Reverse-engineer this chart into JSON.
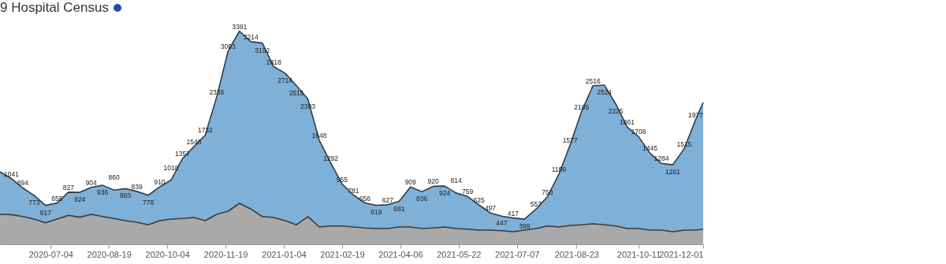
{
  "chart_data": {
    "type": "area",
    "title": "9 Hospital Census",
    "tick_labels": "x",
    "xlim": [
      "2020-05-25",
      "2021-12-01"
    ],
    "ylim": [
      0,
      3500
    ],
    "xticks": [
      "2020-07-04",
      "2020-08-19",
      "2020-10-04",
      "2020-11-19",
      "2021-01-04",
      "2021-02-19",
      "2021-04-06",
      "2021-05-22",
      "2021-07-07",
      "2021-08-23",
      "2021-10-11",
      "2021-12-01"
    ],
    "x": [
      "2020-05-25",
      "2020-06-03",
      "2020-06-12",
      "2020-06-21",
      "2020-06-30",
      "2020-07-09",
      "2020-07-18",
      "2020-07-27",
      "2020-08-05",
      "2020-08-14",
      "2020-08-23",
      "2020-09-01",
      "2020-09-10",
      "2020-09-19",
      "2020-09-28",
      "2020-10-07",
      "2020-10-16",
      "2020-10-25",
      "2020-11-03",
      "2020-11-12",
      "2020-11-21",
      "2020-11-30",
      "2020-12-09",
      "2020-12-18",
      "2020-12-27",
      "2021-01-05",
      "2021-01-14",
      "2021-01-23",
      "2021-02-01",
      "2021-02-10",
      "2021-02-19",
      "2021-02-28",
      "2021-03-09",
      "2021-03-18",
      "2021-03-27",
      "2021-04-05",
      "2021-04-14",
      "2021-04-23",
      "2021-05-02",
      "2021-05-11",
      "2021-05-20",
      "2021-05-29",
      "2021-06-07",
      "2021-06-16",
      "2021-06-25",
      "2021-07-04",
      "2021-07-13",
      "2021-07-22",
      "2021-07-31",
      "2021-08-09",
      "2021-08-18",
      "2021-08-27",
      "2021-09-05",
      "2021-09-14",
      "2021-09-23",
      "2021-10-02",
      "2021-10-11",
      "2021-10-20",
      "2021-10-29",
      "2021-11-07",
      "2021-11-16",
      "2021-11-25",
      "2021-12-01"
    ],
    "series": [
      {
        "color": "#7fb0d8",
        "values": [
          1150,
          1041,
          894,
          773,
          617,
          655,
          827,
          824,
          904,
          936,
          860,
          883,
          839,
          778,
          910,
          1018,
          1357,
          1548,
          1732,
          2336,
          3063,
          3381,
          3214,
          3192,
          2818,
          2714,
          2515,
          2303,
          1648,
          1292,
          955,
          781,
          656,
          619,
          627,
          681,
          909,
          836,
          920,
          924,
          814,
          759,
          625,
          497,
          447,
          417,
          399,
          557,
          753,
          1109,
          1577,
          2105,
          2516,
          2524,
          2225,
          1861,
          1708,
          1445,
          1284,
          1261,
          1515,
          1977,
          2250
        ],
        "value_labels": [
          null,
          "1041",
          "894",
          "773",
          "617",
          "655",
          "827",
          "824",
          "904",
          "936",
          "860",
          "883",
          "839",
          "778",
          "910",
          "1018",
          "1357",
          "1548",
          "1732",
          "2336",
          "3063",
          "3381",
          "3214",
          "3192",
          "2818",
          "2714",
          "2515",
          "2303",
          "1648",
          "1292",
          "955",
          "781",
          "656",
          "619",
          "627",
          "681",
          "909",
          "836",
          "920",
          "924",
          "814",
          "759",
          "625",
          "497",
          "447",
          "417",
          "399",
          "557",
          "753",
          "1109",
          "1577",
          "2105",
          "2516",
          "2524",
          "2225",
          "1861",
          "1708",
          "1445",
          "1284",
          "1261",
          "1515",
          "1977",
          null
        ]
      },
      {
        "color": "#a9a9a9",
        "values": [
          475,
          470,
          440,
          400,
          340,
          400,
          460,
          430,
          475,
          440,
          410,
          375,
          350,
          310,
          375,
          400,
          410,
          425,
          375,
          475,
          525,
          650,
          560,
          440,
          425,
          375,
          310,
          440,
          275,
          290,
          290,
          275,
          260,
          250,
          250,
          275,
          275,
          250,
          260,
          275,
          250,
          240,
          225,
          225,
          215,
          200,
          225,
          250,
          290,
          275,
          300,
          310,
          325,
          310,
          290,
          250,
          250,
          225,
          225,
          200,
          225,
          225,
          240
        ]
      }
    ]
  }
}
